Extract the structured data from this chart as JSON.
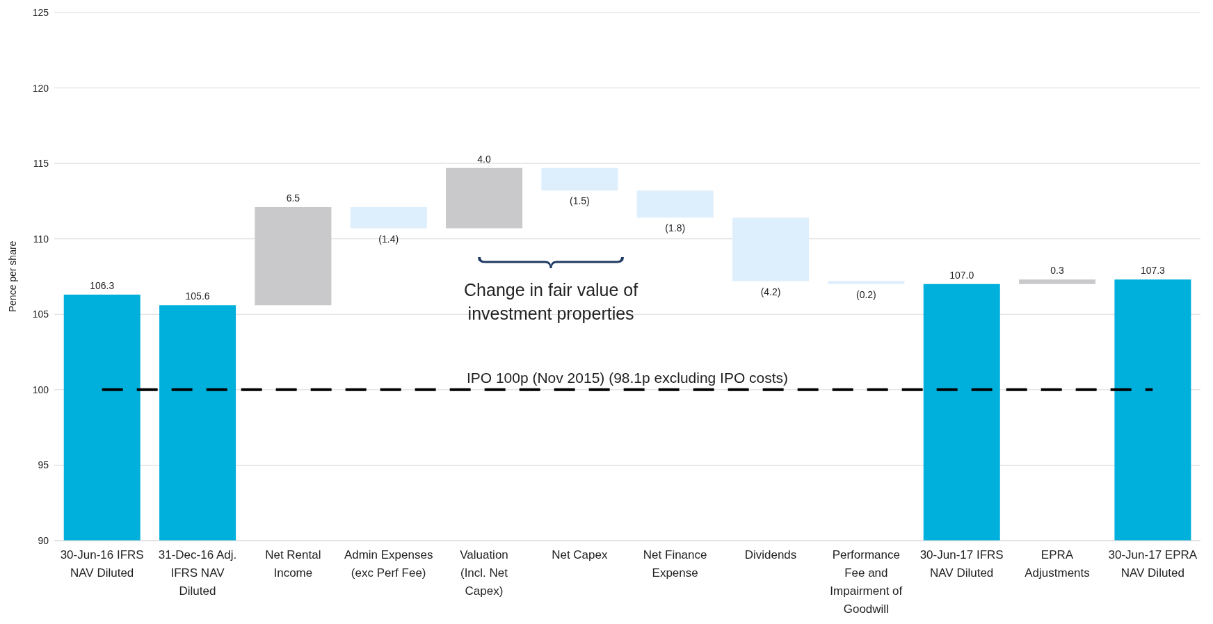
{
  "chart_data": {
    "type": "bar",
    "ylabel": "Pence per share",
    "categories": [
      "30-Jun-16 IFRS NAV Diluted",
      "31-Dec-16 Adj. IFRS NAV Diluted",
      "Net Rental Income",
      "Admin Expenses (exc Perf Fee)",
      "Valuation (Incl. Net Capex)",
      "Net Capex",
      "Net Finance Expense",
      "Dividends",
      "Performance Fee and Impairment of Goodwill",
      "30-Jun-17 IFRS NAV Diluted",
      "EPRA Adjustments",
      "30-Jun-17 EPRA NAV Diluted"
    ],
    "values": [
      106.3,
      105.6,
      6.5,
      -1.4,
      4.0,
      -1.5,
      -1.8,
      -4.2,
      -0.2,
      107.0,
      0.3,
      107.3
    ],
    "base": [
      null,
      null,
      105.6,
      112.1,
      110.7,
      114.7,
      113.2,
      111.4,
      107.2,
      null,
      107.0,
      null
    ],
    "value_labels": [
      "106.3",
      "105.6",
      "6.5",
      "(1.4)",
      "4.0",
      "(1.5)",
      "(1.8)",
      "(4.2)",
      "(0.2)",
      "107.0",
      "0.3",
      "107.3"
    ],
    "colors": [
      "#00b0dc",
      "#00b0dc",
      "#c9c9cb",
      "#ddeefc",
      "#c9c9cb",
      "#ddeefc",
      "#ddeefc",
      "#ddeefc",
      "#ddeefc",
      "#00b0dc",
      "#c9c9cb",
      "#00b0dc"
    ],
    "ylim": [
      90,
      125
    ],
    "yticks": [
      90,
      95,
      100,
      105,
      110,
      115,
      120,
      125
    ],
    "grid": "y",
    "legend": false,
    "ref_lines": [
      {
        "axis": "y",
        "value": 100,
        "label": "IPO 100p (Nov 2015) (98.1p excluding IPO costs)",
        "color": "#000000",
        "line_style": "dashed"
      }
    ],
    "annotations": [
      "Change in fair value of investment properties"
    ]
  }
}
